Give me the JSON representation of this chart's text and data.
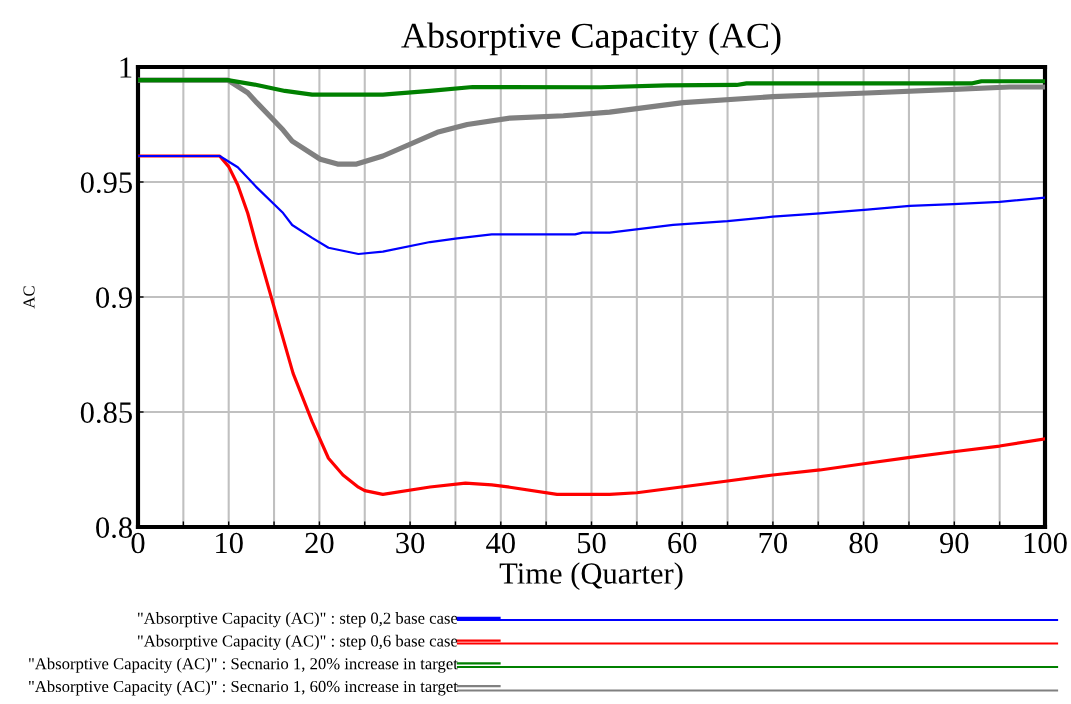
{
  "chart_data": {
    "type": "line",
    "title": "Absorptive Capacity (AC)",
    "xlabel": "Time (Quarter)",
    "ylabel": "AC",
    "xlim": [
      0,
      100
    ],
    "ylim": [
      0.8,
      1.0
    ],
    "xticks": [
      0,
      {
        "value": 5,
        "label": null
      },
      10,
      {
        "value": 15,
        "label": null
      },
      20,
      {
        "value": 25,
        "label": null
      },
      30,
      {
        "value": 35,
        "label": null
      },
      40,
      {
        "value": 45,
        "label": null
      },
      50,
      {
        "value": 55,
        "label": null
      },
      60,
      {
        "value": 65,
        "label": null
      },
      70,
      {
        "value": 75,
        "label": null
      },
      80,
      {
        "value": 85,
        "label": null
      },
      90,
      {
        "value": 95,
        "label": null
      },
      100
    ],
    "yticks": [
      0.8,
      0.85,
      0.9,
      0.95,
      1
    ],
    "grid": true,
    "legend": "bottom",
    "marker": "none",
    "line_style": "solid",
    "series": [
      {
        "name": "\"Absorptive Capacity (AC)\" : step 0,2 base case",
        "color": "#0000ff",
        "x": [
          0,
          9,
          11,
          13,
          16,
          17,
          19.2,
          21,
          24.3,
          27,
          32.2,
          35.2,
          39,
          48.2,
          49,
          52,
          59,
          65,
          70,
          75.2,
          80.4,
          85.1,
          89.9,
          95,
          100
        ],
        "values": [
          0.9613,
          0.9613,
          0.9564,
          0.948,
          0.9365,
          0.9313,
          0.9257,
          0.9214,
          0.9187,
          0.9197,
          0.9239,
          0.9255,
          0.9272,
          0.9272,
          0.928,
          0.928,
          0.9314,
          0.933,
          0.9349,
          0.9364,
          0.938,
          0.9396,
          0.9404,
          0.9414,
          0.9432
        ]
      },
      {
        "name": "\"Absorptive Capacity (AC)\" : step 0,6 base case",
        "color": "#ff0000",
        "x": [
          0,
          9,
          10,
          11,
          12.1,
          13.1,
          15.1,
          17.1,
          19.2,
          21,
          22.6,
          24.3,
          25,
          27,
          32.2,
          36.1,
          39,
          41,
          46.2,
          52,
          55,
          60.1,
          65,
          70,
          75.2,
          80.4,
          85.1,
          89.9,
          95,
          100
        ],
        "values": [
          0.9613,
          0.9613,
          0.9567,
          0.9487,
          0.9364,
          0.9219,
          0.8943,
          0.8668,
          0.8458,
          0.8299,
          0.8226,
          0.8173,
          0.8158,
          0.8142,
          0.8174,
          0.8191,
          0.8183,
          0.8173,
          0.8142,
          0.8142,
          0.8149,
          0.8175,
          0.82,
          0.8226,
          0.8248,
          0.8277,
          0.8303,
          0.8327,
          0.8352,
          0.8383
        ]
      },
      {
        "name": "\"Absorptive Capacity (AC)\" : Secnario 1, 20% increase in target",
        "color": "#008000",
        "x": [
          0,
          9.9,
          13.1,
          16.2,
          19.2,
          27,
          32.2,
          36.9,
          51,
          58.3,
          66,
          67.1,
          92,
          93,
          100
        ],
        "values": [
          0.9943,
          0.9943,
          0.9922,
          0.9896,
          0.988,
          0.988,
          0.9896,
          0.9913,
          0.9912,
          0.992,
          0.9922,
          0.9929,
          0.9929,
          0.9938,
          0.9938
        ]
      },
      {
        "name": "\"Absorptive Capacity (AC)\" : Secnario 1, 60% increase in target",
        "color": "#808080",
        "x": [
          0,
          9.9,
          12.1,
          13.1,
          16,
          17,
          20.1,
          22,
          24.1,
          27,
          33,
          36.3,
          41,
          46.9,
          52,
          60.1,
          70,
          80.4,
          89.9,
          96.1,
          100
        ],
        "values": [
          0.9943,
          0.9943,
          0.9888,
          0.9845,
          0.9726,
          0.9678,
          0.9599,
          0.9578,
          0.9578,
          0.9613,
          0.9716,
          0.975,
          0.9778,
          0.9788,
          0.9804,
          0.9845,
          0.9871,
          0.9887,
          0.9903,
          0.9913,
          0.9913
        ]
      }
    ]
  }
}
